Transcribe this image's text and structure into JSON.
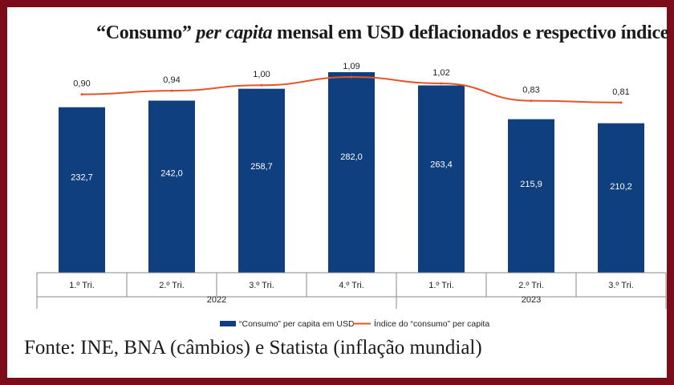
{
  "title": {
    "part1": "“Consumo” ",
    "part2": "per capita",
    "part3": " mensal em USD deflacionados e respectivo índice"
  },
  "source": "Fonte: INE, BNA (câmbios) e Statista (inflação mundial)",
  "colors": {
    "border": "#7d0c1a",
    "bar": "#0f3f7f",
    "line": "#e8542a"
  },
  "chart_data": {
    "type": "bar",
    "categories": [
      "1.º Tri.",
      "2.º Tri.",
      "3.º Tri.",
      "4.º Tri.",
      "1.º Tri.",
      "2.º Tri.",
      "3.º Tri."
    ],
    "year_groups": [
      {
        "label": "2022",
        "start": 0,
        "end": 3
      },
      {
        "label": "2023",
        "start": 4,
        "end": 6
      }
    ],
    "series": [
      {
        "name": "“Consumo” per capita em USD",
        "type": "bar",
        "values": [
          232.7,
          242.0,
          258.7,
          282.0,
          263.4,
          215.9,
          210.2
        ],
        "labels": [
          "232,7",
          "242,0",
          "258,7",
          "282,0",
          "263,4",
          "215,9",
          "210,2"
        ]
      },
      {
        "name": "Índice do “consumo” per capita",
        "type": "line",
        "values": [
          0.9,
          0.94,
          1.0,
          1.09,
          1.02,
          0.83,
          0.81
        ],
        "labels": [
          "0,90",
          "0,94",
          "1,00",
          "1,09",
          "1,02",
          "0,83",
          "0,81"
        ]
      }
    ],
    "legend_position": "bottom",
    "grid": false
  }
}
